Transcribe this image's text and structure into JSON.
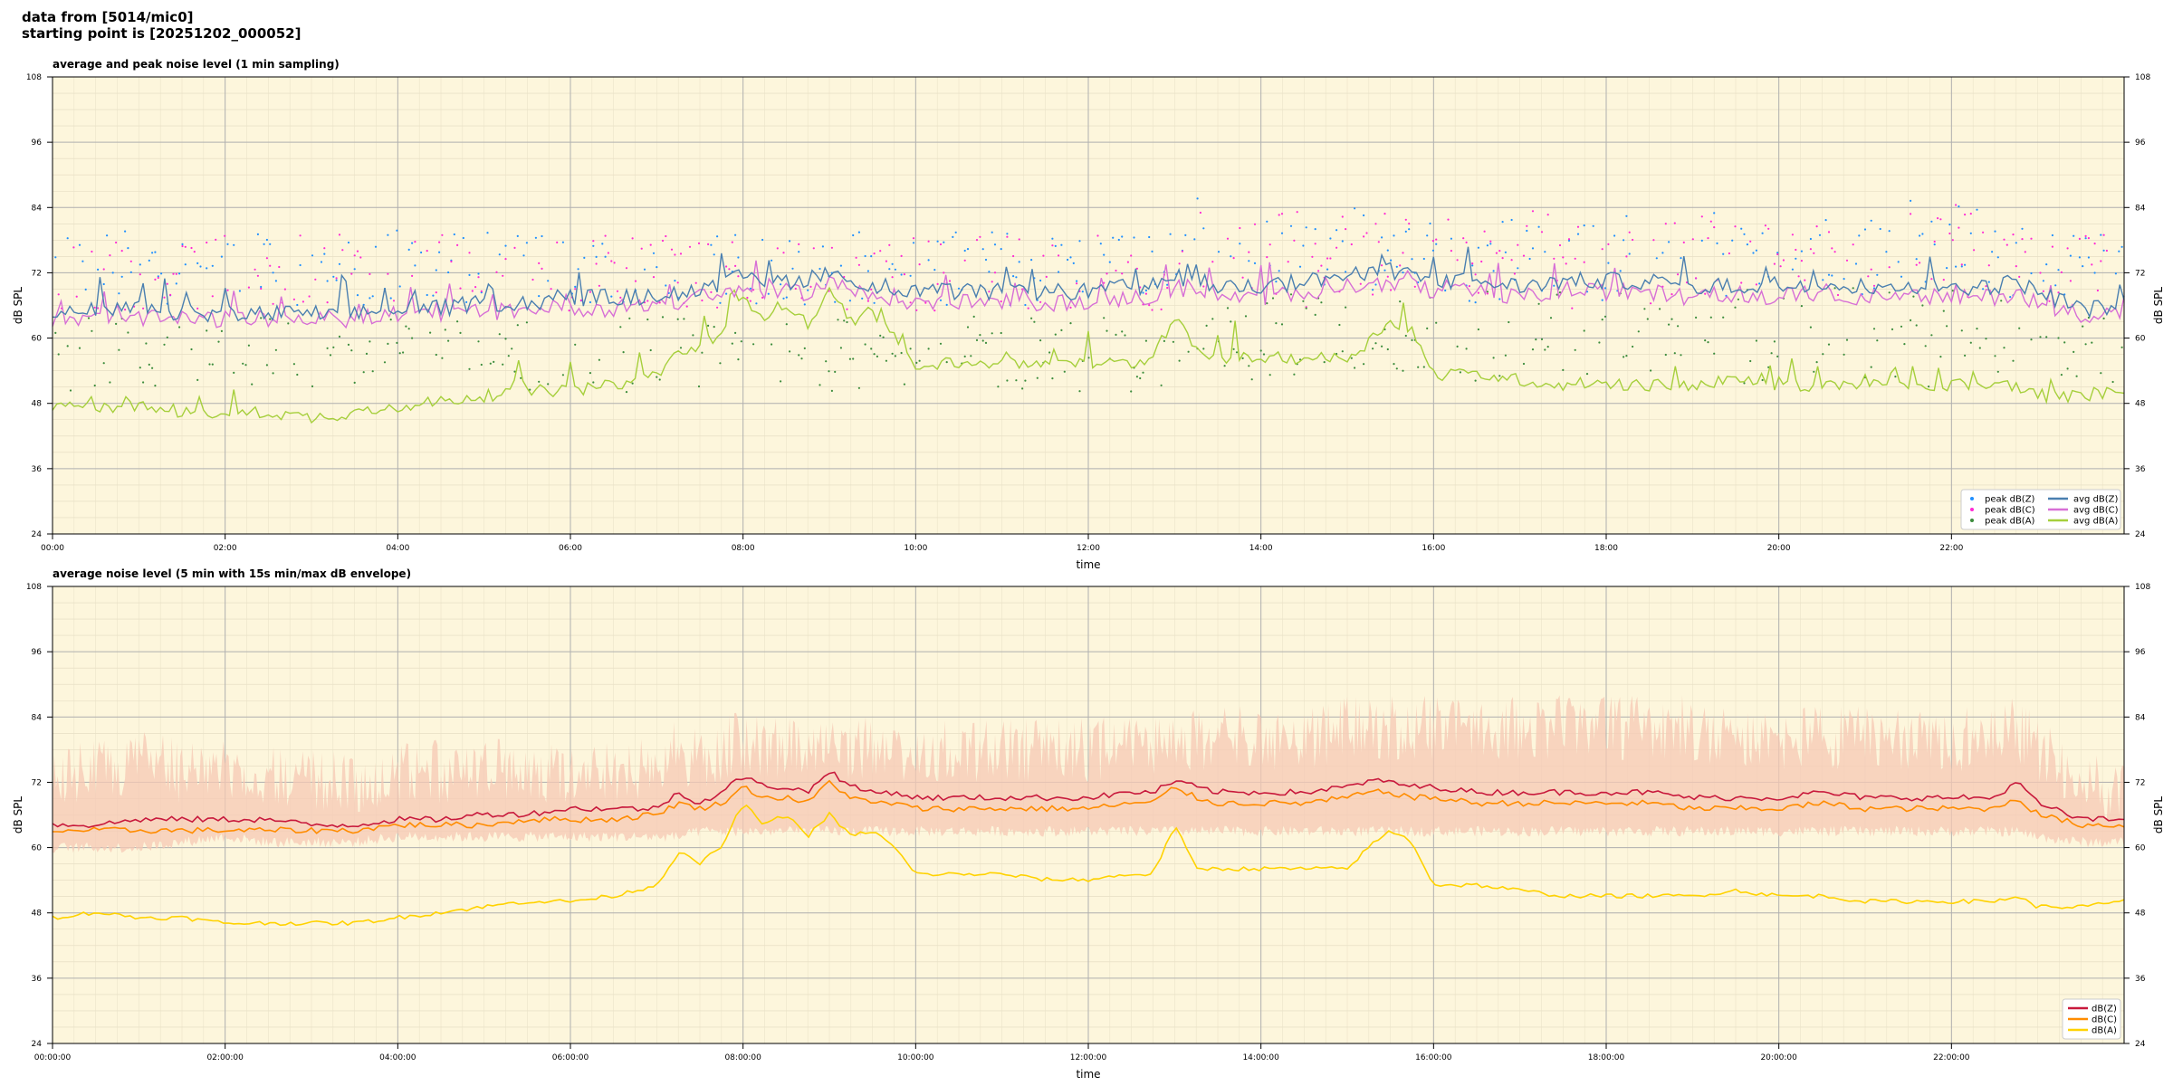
{
  "header": {
    "line1": "data from [5014/mic0]",
    "line2": "starting point is [20251202_000052]"
  },
  "colors": {
    "background": "#fdf6dc",
    "peak_z": "#1f8fff",
    "peak_c": "#ff2ad4",
    "peak_a": "#3c8c3c",
    "avg_z": "#4a7fb0",
    "avg_c": "#d76fd6",
    "avg_a": "#a6cf3c",
    "five_z": "#c8193c",
    "five_c": "#ff8c00",
    "five_a": "#ffd200",
    "envelope": "#f6c8b4"
  },
  "chart_data": [
    {
      "type": "line",
      "title": "average and peak noise level (1 min sampling)",
      "xlabel": "time",
      "ylabel": "dB SPL",
      "xlim": [
        0,
        24
      ],
      "ylim": [
        24,
        108
      ],
      "x_tick_labels": [
        "00:00",
        "02:00",
        "04:00",
        "06:00",
        "08:00",
        "10:00",
        "12:00",
        "14:00",
        "16:00",
        "18:00",
        "20:00",
        "22:00"
      ],
      "y_ticks": [
        24,
        36,
        48,
        60,
        72,
        84,
        96,
        108
      ],
      "grid": true,
      "legend_position": "lower-right",
      "legend": [
        "peak dB(Z)",
        "peak dB(C)",
        "peak dB(A)",
        "avg dB(Z)",
        "avg dB(C)",
        "avg dB(A)"
      ],
      "x_hours": [
        0,
        0.5,
        1,
        1.5,
        2,
        2.5,
        3,
        3.5,
        4,
        4.5,
        5,
        5.5,
        6,
        6.5,
        7,
        7.25,
        7.5,
        7.75,
        8,
        8.25,
        8.5,
        8.75,
        9,
        9.25,
        9.5,
        9.75,
        10,
        10.5,
        11,
        11.5,
        12,
        12.5,
        12.75,
        13,
        13.25,
        13.5,
        14,
        14.5,
        15,
        15.25,
        15.5,
        15.75,
        16,
        16.5,
        17,
        17.5,
        18,
        18.5,
        19,
        19.5,
        20,
        20.5,
        21,
        21.5,
        22,
        22.5,
        22.75,
        23,
        23.5,
        24
      ],
      "series": [
        {
          "name": "avg dB(Z)",
          "values": [
            64,
            64,
            65,
            64,
            64,
            64,
            64,
            64,
            65,
            65,
            66,
            66,
            67,
            67,
            67,
            68,
            68,
            69,
            71,
            70,
            70,
            70,
            72,
            70,
            69,
            69,
            68,
            68,
            68,
            68,
            68,
            69,
            69,
            71,
            70,
            69,
            69,
            70,
            71,
            71,
            72,
            71,
            70,
            70,
            69,
            70,
            70,
            70,
            69,
            69,
            69,
            70,
            69,
            69,
            69,
            69,
            70,
            68,
            65,
            65
          ]
        },
        {
          "name": "avg dB(C)",
          "values": [
            63,
            63,
            63,
            63,
            63,
            63,
            63,
            63,
            64,
            64,
            64,
            65,
            65,
            65,
            66,
            66,
            67,
            67,
            69,
            68,
            68,
            68,
            70,
            68,
            67,
            67,
            66,
            66,
            66,
            66,
            66,
            67,
            67,
            69,
            68,
            67,
            67,
            68,
            69,
            69,
            70,
            69,
            68,
            68,
            67,
            68,
            68,
            68,
            67,
            67,
            67,
            68,
            67,
            67,
            67,
            67,
            68,
            66,
            64,
            64
          ]
        },
        {
          "name": "avg dB(A)",
          "values": [
            47,
            47,
            47,
            46,
            46,
            46,
            45,
            46,
            47,
            48,
            49,
            50,
            50,
            51,
            53,
            57,
            58,
            61,
            67,
            64,
            66,
            62,
            68,
            63,
            64,
            60,
            55,
            55,
            55,
            55,
            55,
            55,
            56,
            64,
            57,
            56,
            56,
            56,
            56,
            59,
            63,
            61,
            53,
            53,
            52,
            51,
            51,
            51,
            51,
            52,
            51,
            51,
            51,
            51,
            51,
            51,
            51,
            49,
            49,
            50
          ]
        }
      ],
      "peak_series": [
        {
          "name": "peak dB(Z)",
          "band": [
            66,
            80
          ]
        },
        {
          "name": "peak dB(C)",
          "band": [
            65,
            79
          ]
        },
        {
          "name": "peak dB(A)",
          "band": [
            50,
            64
          ]
        }
      ]
    },
    {
      "type": "line",
      "title": "average noise level (5 min with 15s min/max dB envelope)",
      "xlabel": "time",
      "ylabel": "dB SPL",
      "xlim": [
        0,
        24
      ],
      "ylim": [
        24,
        108
      ],
      "x_tick_labels": [
        "00:00:00",
        "02:00:00",
        "04:00:00",
        "06:00:00",
        "08:00:00",
        "10:00:00",
        "12:00:00",
        "14:00:00",
        "16:00:00",
        "18:00:00",
        "20:00:00",
        "22:00:00"
      ],
      "y_ticks": [
        24,
        36,
        48,
        60,
        72,
        84,
        96,
        108
      ],
      "grid": true,
      "legend_position": "lower-right",
      "legend": [
        "dB(Z)",
        "dB(C)",
        "dB(A)"
      ],
      "x_hours": [
        0,
        0.5,
        1,
        1.5,
        2,
        2.5,
        3,
        3.5,
        4,
        4.5,
        5,
        5.5,
        6,
        6.5,
        7,
        7.25,
        7.5,
        7.75,
        8,
        8.25,
        8.5,
        8.75,
        9,
        9.25,
        9.5,
        9.75,
        10,
        10.5,
        11,
        11.5,
        12,
        12.5,
        12.75,
        13,
        13.25,
        13.5,
        14,
        14.5,
        15,
        15.25,
        15.5,
        15.75,
        16,
        16.5,
        17,
        17.5,
        18,
        18.5,
        19,
        19.5,
        20,
        20.5,
        21,
        21.5,
        22,
        22.5,
        22.75,
        23,
        23.5,
        24
      ],
      "series": [
        {
          "name": "dB(Z)",
          "values": [
            64,
            64,
            65,
            65,
            65,
            65,
            64,
            64,
            65,
            65,
            66,
            66,
            67,
            67,
            67,
            70,
            68,
            70,
            73,
            71,
            71,
            70,
            74,
            71,
            70,
            70,
            69,
            69,
            69,
            69,
            69,
            70,
            70,
            72,
            71,
            70,
            70,
            70,
            71,
            72,
            72,
            71,
            71,
            70,
            70,
            70,
            70,
            70,
            69,
            69,
            69,
            70,
            69,
            69,
            69,
            69,
            72,
            68,
            65,
            65
          ]
        },
        {
          "name": "dB(C)",
          "values": [
            63,
            63,
            63,
            63,
            63,
            63,
            63,
            63,
            64,
            64,
            64,
            65,
            65,
            65,
            66,
            68,
            67,
            68,
            71,
            69,
            69,
            68,
            72,
            69,
            68,
            68,
            67,
            67,
            67,
            67,
            67,
            68,
            68,
            71,
            69,
            68,
            68,
            68,
            69,
            70,
            70,
            69,
            69,
            68,
            68,
            68,
            68,
            68,
            67,
            67,
            67,
            68,
            67,
            67,
            67,
            67,
            69,
            66,
            64,
            64
          ]
        },
        {
          "name": "dB(A)",
          "values": [
            47,
            48,
            47,
            47,
            46,
            46,
            46,
            46,
            47,
            48,
            49,
            50,
            50,
            51,
            53,
            59,
            57,
            60,
            68,
            64,
            66,
            62,
            66,
            62,
            63,
            60,
            55,
            55,
            55,
            54,
            54,
            55,
            55,
            64,
            56,
            56,
            56,
            56,
            56,
            60,
            63,
            61,
            53,
            53,
            52,
            51,
            51,
            51,
            51,
            52,
            51,
            51,
            50,
            50,
            50,
            50,
            51,
            49,
            49,
            50
          ]
        }
      ],
      "envelope": {
        "lower": [
          60,
          60,
          60,
          61,
          62,
          61,
          61,
          61,
          62,
          62,
          62,
          62,
          62,
          62,
          62,
          62,
          63,
          63,
          63,
          63,
          63,
          63,
          63,
          63,
          63,
          63,
          63,
          63,
          63,
          63,
          63,
          63,
          63,
          63,
          63,
          63,
          63,
          63,
          63,
          63,
          63,
          63,
          63,
          63,
          63,
          63,
          63,
          63,
          63,
          63,
          63,
          63,
          63,
          63,
          63,
          63,
          63,
          62,
          61,
          61
        ],
        "upper": [
          78,
          80,
          82,
          80,
          80,
          80,
          78,
          78,
          80,
          80,
          80,
          80,
          80,
          80,
          80,
          84,
          82,
          84,
          86,
          84,
          84,
          83,
          86,
          84,
          84,
          84,
          84,
          84,
          84,
          84,
          84,
          84,
          84,
          86,
          86,
          86,
          86,
          86,
          88,
          88,
          88,
          88,
          88,
          88,
          88,
          88,
          88,
          88,
          88,
          86,
          86,
          86,
          86,
          86,
          86,
          86,
          88,
          84,
          78,
          76
        ]
      }
    }
  ]
}
